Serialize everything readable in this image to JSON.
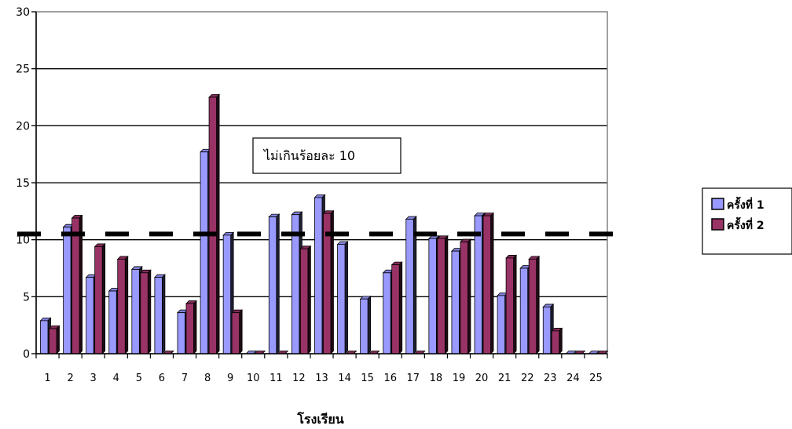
{
  "chart_data": {
    "type": "bar",
    "xlabel": "โรงเรียน",
    "ylabel": "",
    "ylim": [
      0,
      30
    ],
    "yticks": [
      0,
      5,
      10,
      15,
      20,
      25,
      30
    ],
    "grid": true,
    "legend_position": "right",
    "categories": [
      "1",
      "2",
      "3",
      "4",
      "5",
      "6",
      "7",
      "8",
      "9",
      "10",
      "11",
      "12",
      "13",
      "14",
      "15",
      "16",
      "17",
      "18",
      "19",
      "20",
      "21",
      "22",
      "23",
      "24",
      "25"
    ],
    "series": [
      {
        "name": "ครั้งที่ 1",
        "color": "#9999ff",
        "values": [
          2.9,
          11.1,
          6.7,
          5.5,
          7.4,
          6.7,
          3.6,
          17.7,
          10.4,
          0,
          12.0,
          12.2,
          13.7,
          9.6,
          4.8,
          7.1,
          11.8,
          10.1,
          9.0,
          12.1,
          5.1,
          7.5,
          4.1,
          0,
          0
        ]
      },
      {
        "name": "ครั้งที่ 2",
        "color": "#993366",
        "values": [
          2.2,
          11.9,
          9.4,
          8.3,
          7.1,
          0,
          4.4,
          22.5,
          3.6,
          0,
          0,
          9.2,
          12.3,
          0,
          0,
          7.8,
          0,
          10.1,
          9.8,
          12.1,
          8.4,
          8.3,
          2.0,
          0,
          0
        ]
      }
    ],
    "reference_line": {
      "value": 10.5,
      "style": "dashed"
    },
    "annotation": "ไม่เกินร้อยละ 10"
  }
}
